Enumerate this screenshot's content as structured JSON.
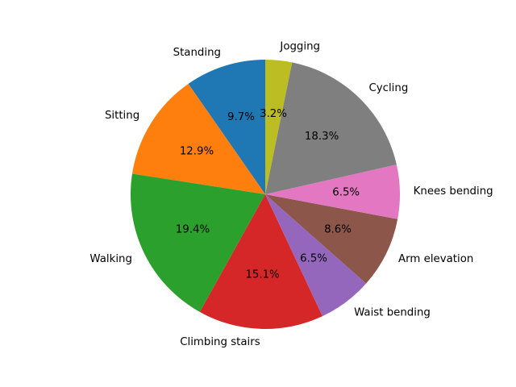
{
  "chart_data": {
    "type": "pie",
    "title": "",
    "start_angle_deg": 90,
    "direction": "counterclockwise",
    "slices": [
      {
        "label": "Standing",
        "value": 9.7,
        "pct_label": "9.7%",
        "color": "#1f77b4"
      },
      {
        "label": "Sitting",
        "value": 12.9,
        "pct_label": "12.9%",
        "color": "#ff7f0e"
      },
      {
        "label": "Walking",
        "value": 19.4,
        "pct_label": "19.4%",
        "color": "#2ca02c"
      },
      {
        "label": "Climbing stairs",
        "value": 15.1,
        "pct_label": "15.1%",
        "color": "#d62728"
      },
      {
        "label": "Waist bending",
        "value": 6.5,
        "pct_label": "6.5%",
        "color": "#9467bd"
      },
      {
        "label": "Arm elevation",
        "value": 8.6,
        "pct_label": "8.6%",
        "color": "#8c564b"
      },
      {
        "label": "Knees bending",
        "value": 6.5,
        "pct_label": "6.5%",
        "color": "#e377c2"
      },
      {
        "label": "Cycling",
        "value": 18.3,
        "pct_label": "18.3%",
        "color": "#7f7f7f"
      },
      {
        "label": "Jogging",
        "value": 3.2,
        "pct_label": "3.2%",
        "color": "#bcbd22"
      }
    ]
  }
}
